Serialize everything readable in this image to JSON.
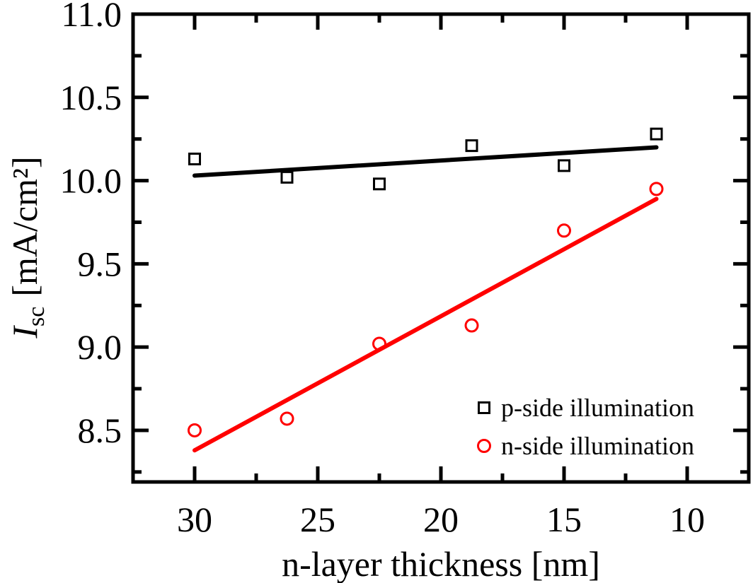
{
  "chart_data": {
    "type": "scatter",
    "xlabel": "n-layer thickness [nm]",
    "ylabel_main": "I",
    "ylabel_sub": "sc",
    "ylabel_unit": "[mA/cm²]",
    "xlim": [
      32.5,
      7.5
    ],
    "x_reversed": true,
    "ylim": [
      8.19,
      11.0
    ],
    "x_ticks": [
      30,
      25,
      20,
      15,
      10
    ],
    "x_tick_labels": [
      "30",
      "25",
      "20",
      "15",
      "10"
    ],
    "y_ticks": [
      8.5,
      9.0,
      9.5,
      10.0,
      10.5,
      11.0
    ],
    "y_tick_labels": [
      "8.5",
      "9.0",
      "9.5",
      "10.0",
      "10.5",
      "11.0"
    ],
    "grid": false,
    "legend_position": "bottom-right",
    "series": [
      {
        "name": "p-side illumination",
        "marker": "square",
        "color": "#000000",
        "x": [
          30,
          26.25,
          22.5,
          18.75,
          15,
          11.25
        ],
        "y": [
          10.13,
          10.02,
          9.98,
          10.21,
          10.09,
          10.28
        ],
        "fit": {
          "x": [
            30,
            11.25
          ],
          "y": [
            10.03,
            10.2
          ]
        }
      },
      {
        "name": "n-side illumination",
        "marker": "circle",
        "color": "#ff0000",
        "x": [
          30,
          26.25,
          22.5,
          18.75,
          15,
          11.25
        ],
        "y": [
          8.5,
          8.57,
          9.02,
          9.13,
          9.7,
          9.95
        ],
        "fit": {
          "x": [
            30,
            11.25
          ],
          "y": [
            8.38,
            9.89
          ]
        }
      }
    ]
  }
}
